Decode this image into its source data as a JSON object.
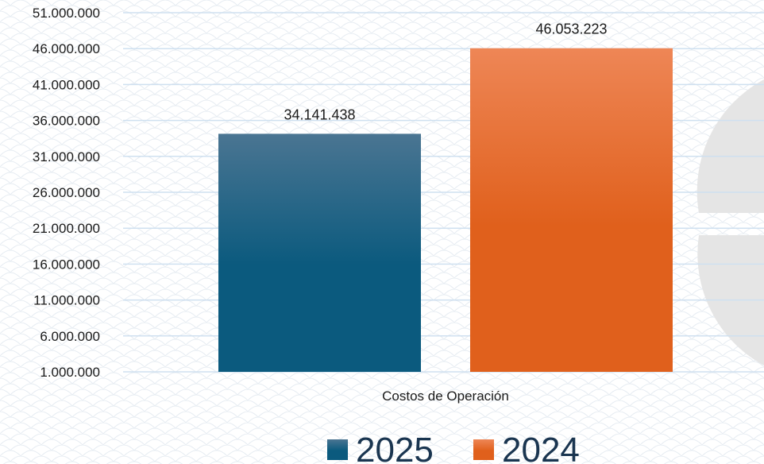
{
  "chart_data": {
    "type": "bar",
    "categories": [
      "Costos de Operación"
    ],
    "series": [
      {
        "name": "2025",
        "values": [
          34141438
        ],
        "value_labels": [
          "34.141.438"
        ],
        "color": "#0b5a7e",
        "color_top": "#4a7592"
      },
      {
        "name": "2024",
        "values": [
          46053223
        ],
        "value_labels": [
          "46.053.223"
        ],
        "color": "#e0601c",
        "color_top": "#ee8656"
      }
    ],
    "y_ticks": [
      1000000,
      6000000,
      11000000,
      16000000,
      21000000,
      26000000,
      31000000,
      36000000,
      41000000,
      46000000,
      51000000
    ],
    "y_tick_labels": [
      "1.000.000",
      "6.000.000",
      "11.000.000",
      "16.000.000",
      "21.000.000",
      "26.000.000",
      "31.000.000",
      "36.000.000",
      "41.000.000",
      "46.000.000",
      "51.000.000"
    ],
    "ylim": [
      1000000,
      51000000
    ],
    "grid": true,
    "grid_color": "#cfe0f0",
    "legend_position": "bottom"
  }
}
